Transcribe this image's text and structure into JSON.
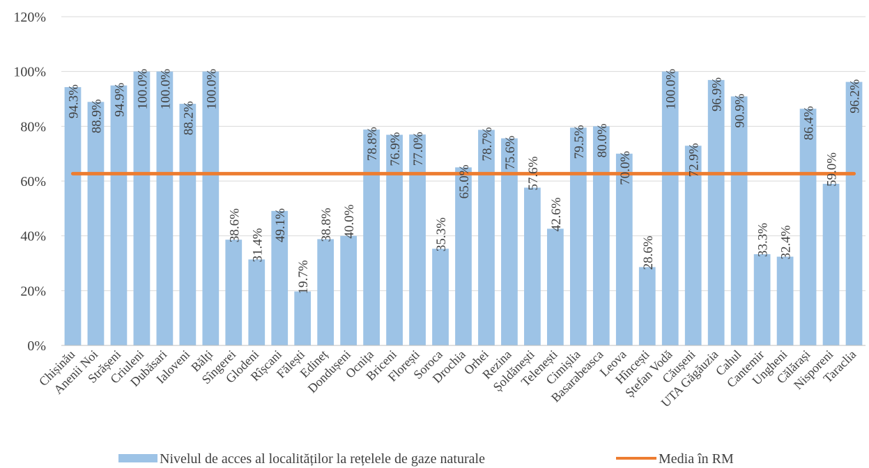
{
  "chart_data": {
    "type": "bar",
    "title": "",
    "xlabel": "",
    "ylabel": "",
    "ylim": [
      0,
      120
    ],
    "y_ticks": [
      "0%",
      "20%",
      "40%",
      "60%",
      "80%",
      "100%",
      "120%"
    ],
    "grid": true,
    "legend_position": "bottom",
    "categories": [
      "Chișinău",
      "Anenii Noi",
      "Strășeni",
      "Criuleni",
      "Dubăsari",
      "Ialoveni",
      "Bălți",
      "Sîngerei",
      "Glodeni",
      "Rîșcani",
      "Fălești",
      "Edineț",
      "Dondușeni",
      "Ocnița",
      "Briceni",
      "Florești",
      "Soroca",
      "Drochia",
      "Orhei",
      "Rezina",
      "Șoldănești",
      "Telenești",
      "Cimișlia",
      "Basarabeasca",
      "Leova",
      "Hîncești",
      "Ștefan Vodă",
      "Căușeni",
      "UTA Găgăuzia",
      "Cahul",
      "Cantemir",
      "Ungheni",
      "Călărași",
      "Nisporeni",
      "Taraclia"
    ],
    "series": [
      {
        "name": "Nivelul de acces al localităților la rețelele de gaze naturale",
        "type": "bar",
        "color": "#9dc3e6",
        "values": [
          94.3,
          88.9,
          94.9,
          100.0,
          100.0,
          88.2,
          100.0,
          38.6,
          31.4,
          49.1,
          19.7,
          38.8,
          40.0,
          78.8,
          76.9,
          77.0,
          35.3,
          65.0,
          78.7,
          75.6,
          57.6,
          42.6,
          79.5,
          80.0,
          70.0,
          28.6,
          100.0,
          72.9,
          96.9,
          90.9,
          33.3,
          32.4,
          86.4,
          59.0,
          96.2
        ],
        "labels": [
          "94.3%",
          "88.9%",
          "94.9%",
          "100.0%",
          "100.0%",
          "88.2%",
          "100.0%",
          "38.6%",
          "31.4%",
          "49.1%",
          "19.7%",
          "38.8%",
          "40.0%",
          "78.8%",
          "76.9%",
          "77.0%",
          "35.3%",
          "65.0%",
          "78.7%",
          "75.6%",
          "57.6%",
          "42.6%",
          "79.5%",
          "80.0%",
          "70.0%",
          "28.6%",
          "100.0%",
          "72.9%",
          "96.9%",
          "90.9%",
          "33.3%",
          "32.4%",
          "86.4%",
          "59.0%",
          "96.2%"
        ],
        "label_placement": [
          "above",
          "above",
          "above",
          "above",
          "above",
          "above",
          "above",
          "inside",
          "inside",
          "above",
          "inside",
          "inside",
          "inside",
          "above",
          "above",
          "above",
          "inside",
          "above",
          "above",
          "above",
          "inside",
          "inside",
          "above",
          "above",
          "above",
          "inside",
          "above",
          "above",
          "above",
          "above",
          "inside",
          "inside",
          "above",
          "inside",
          "above"
        ]
      },
      {
        "name": "Media în RM",
        "type": "line",
        "color": "#ed7d31",
        "value": 62.7
      }
    ]
  }
}
